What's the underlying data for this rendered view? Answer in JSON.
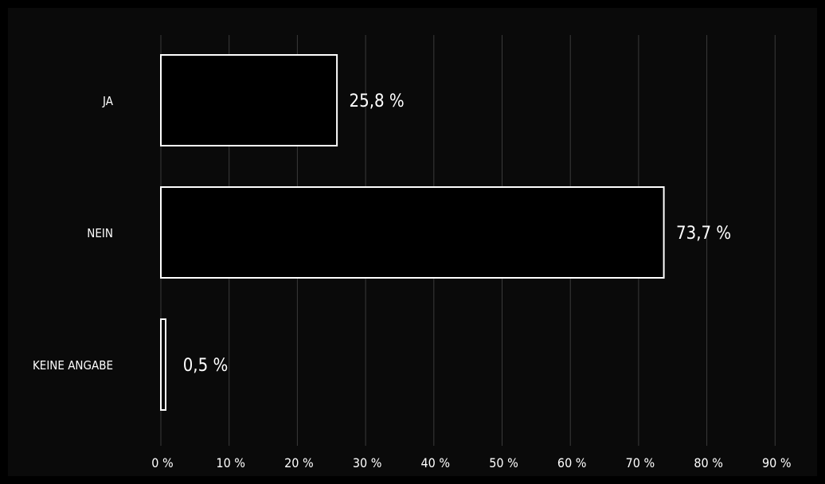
{
  "chart_data": {
    "type": "bar",
    "orientation": "horizontal",
    "categories": [
      "JA",
      "NEIN",
      "KEINE ANGABE"
    ],
    "values": [
      25.8,
      73.7,
      0.5
    ],
    "value_labels": [
      "25,8 %",
      "73,7 %",
      "0,5 %"
    ],
    "xlim": [
      0,
      90
    ],
    "xticks": [
      0,
      10,
      20,
      30,
      40,
      50,
      60,
      70,
      80,
      90
    ],
    "xtick_labels": [
      "0 %",
      "10 %",
      "20 %",
      "30 %",
      "40 %",
      "50 %",
      "60 %",
      "70 %",
      "80 %",
      "90 %"
    ],
    "grid": true,
    "colors": {
      "background": "#0a0a0a",
      "frame": "#000000",
      "bar_fill": "#000000",
      "bar_stroke": "#ffffff",
      "grid": "#3a3a3a",
      "text": "#ffffff"
    }
  }
}
